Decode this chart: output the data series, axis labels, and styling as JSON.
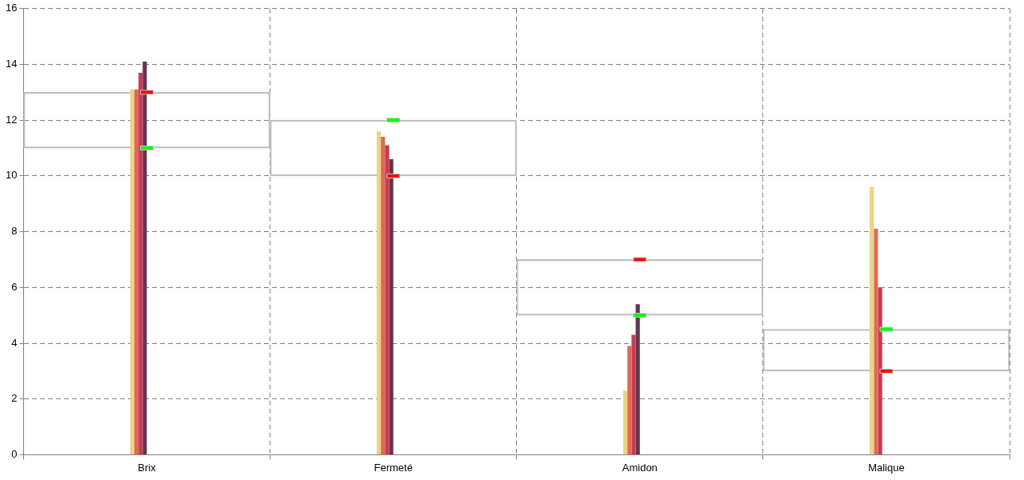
{
  "chart_data": {
    "type": "bar",
    "categories": [
      "Brix",
      "Fermeté",
      "Amidon",
      "Malique"
    ],
    "series": [
      {
        "color": "#edd385",
        "values": [
          13.1,
          11.6,
          2.3,
          9.6
        ]
      },
      {
        "color": "#de6a55",
        "values": [
          13.1,
          11.4,
          3.9,
          8.1
        ]
      },
      {
        "color": "#c43c55",
        "values": [
          13.7,
          11.1,
          4.3,
          6.0
        ]
      },
      {
        "color": "#62364c",
        "values": [
          14.1,
          10.6,
          5.4,
          0
        ]
      },
      {
        "type": "bar",
        "color": "#c0c0c0",
        "base": [
          11,
          10,
          5,
          3
        ],
        "values": [
          2,
          2,
          2,
          1.5
        ]
      },
      {
        "type": "scatter",
        "marker": "square",
        "color": "#00ff00",
        "x": [
          "Brix",
          "Fermeté",
          "Amidon",
          "Malique"
        ],
        "values": [
          11,
          12,
          5,
          4.5
        ]
      },
      {
        "type": "scatter",
        "marker": "square",
        "color": "#ff0000",
        "x": [
          "Brix",
          "Fermeté",
          "Amidon",
          "Malique"
        ],
        "values": [
          13,
          10,
          7,
          3
        ]
      }
    ],
    "ylim": [
      0,
      16
    ],
    "yticks": [
      0,
      2,
      4,
      6,
      8,
      10,
      12,
      14,
      16
    ],
    "grid": true,
    "legend": false
  }
}
